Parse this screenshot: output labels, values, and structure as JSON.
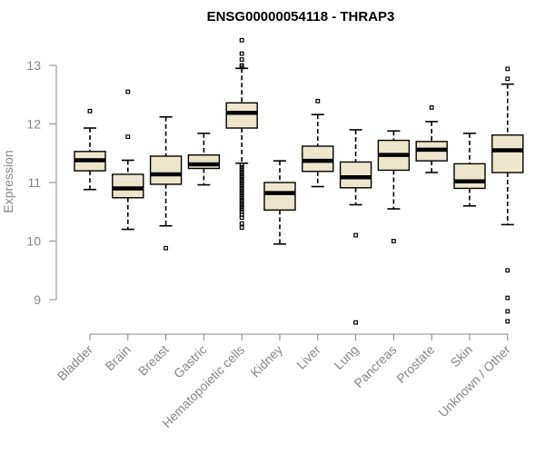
{
  "chart_data": {
    "type": "boxplot",
    "title": "ENSG00000054118 - THRAP3",
    "xlabel": "",
    "ylabel": "Expression",
    "ylim": [
      8.5,
      13.6
    ],
    "yticks": [
      9,
      10,
      11,
      12,
      13
    ],
    "grid": false,
    "legend": "none",
    "colors": {
      "box_fill": "#ede6cc",
      "box_stroke": "#000000",
      "median": "#000000",
      "axis": "#888888"
    },
    "categories": [
      "Bladder",
      "Brain",
      "Breast",
      "Gastric",
      "Hematopoietic cells",
      "Kidney",
      "Liver",
      "Lung",
      "Pancreas",
      "Prostate",
      "Skin",
      "Unknown / Other"
    ],
    "boxes": [
      {
        "name": "Bladder",
        "whisker_low": 10.88,
        "q1": 11.2,
        "median": 11.38,
        "q3": 11.53,
        "whisker_high": 11.93,
        "outliers": [
          12.22
        ]
      },
      {
        "name": "Brain",
        "whisker_low": 10.2,
        "q1": 10.74,
        "median": 10.9,
        "q3": 11.14,
        "whisker_high": 11.38,
        "outliers": [
          12.55,
          11.78
        ]
      },
      {
        "name": "Breast",
        "whisker_low": 10.26,
        "q1": 10.97,
        "median": 11.14,
        "q3": 11.45,
        "whisker_high": 12.12,
        "outliers": [
          9.88
        ]
      },
      {
        "name": "Gastric",
        "whisker_low": 10.96,
        "q1": 11.24,
        "median": 11.31,
        "q3": 11.47,
        "whisker_high": 11.84,
        "outliers": []
      },
      {
        "name": "Hematopoietic cells",
        "whisker_low": 11.33,
        "q1": 11.93,
        "median": 12.19,
        "q3": 12.36,
        "whisker_high": 12.95,
        "outliers": [
          13.43,
          13.2,
          13.1,
          13.0,
          12.97,
          11.3,
          11.26,
          11.22,
          11.18,
          11.14,
          11.1,
          11.06,
          11.02,
          10.98,
          10.94,
          10.9,
          10.86,
          10.82,
          10.78,
          10.74,
          10.7,
          10.66,
          10.62,
          10.58,
          10.54,
          10.5,
          10.45,
          10.4,
          10.3,
          10.23
        ]
      },
      {
        "name": "Kidney",
        "whisker_low": 9.95,
        "q1": 10.53,
        "median": 10.82,
        "q3": 11.0,
        "whisker_high": 11.37,
        "outliers": []
      },
      {
        "name": "Liver",
        "whisker_low": 10.93,
        "q1": 11.19,
        "median": 11.37,
        "q3": 11.62,
        "whisker_high": 12.16,
        "outliers": [
          12.39
        ]
      },
      {
        "name": "Lung",
        "whisker_low": 10.62,
        "q1": 10.91,
        "median": 11.09,
        "q3": 11.35,
        "whisker_high": 11.9,
        "outliers": [
          10.1,
          8.61
        ]
      },
      {
        "name": "Pancreas",
        "whisker_low": 10.55,
        "q1": 11.21,
        "median": 11.47,
        "q3": 11.72,
        "whisker_high": 11.88,
        "outliers": [
          10.0
        ]
      },
      {
        "name": "Prostate",
        "whisker_low": 11.17,
        "q1": 11.37,
        "median": 11.56,
        "q3": 11.7,
        "whisker_high": 12.04,
        "outliers": [
          12.28
        ]
      },
      {
        "name": "Skin",
        "whisker_low": 10.6,
        "q1": 10.9,
        "median": 11.02,
        "q3": 11.32,
        "whisker_high": 11.84,
        "outliers": []
      },
      {
        "name": "Unknown / Other",
        "whisker_low": 10.28,
        "q1": 11.17,
        "median": 11.55,
        "q3": 11.81,
        "whisker_high": 12.68,
        "outliers": [
          12.94,
          12.77,
          9.5,
          9.03,
          8.8,
          8.63
        ]
      }
    ]
  }
}
